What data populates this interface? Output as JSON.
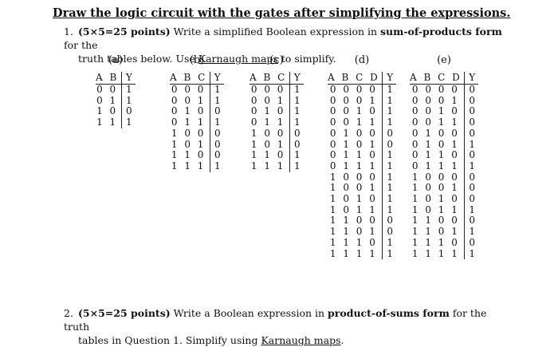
{
  "title": "Draw the logic circuit with the gates after simplifying the expressions.",
  "question1": {
    "number": "1.",
    "points": "(5×5=25 points)",
    "text_a": " Write a simplified Boolean expression in ",
    "emphasis": "sum-of-products form",
    "text_b": " for the",
    "line2_a": "truth tables below. Use ",
    "link": "Karnaugh maps",
    "line2_b": " to simplify."
  },
  "tables": [
    {
      "label": "(a)",
      "header_inputs": "A B",
      "header_output": "Y",
      "rows": [
        {
          "in": "0 0",
          "y": "1"
        },
        {
          "in": "0 1",
          "y": "1"
        },
        {
          "in": "1 0",
          "y": "0"
        },
        {
          "in": "1 1",
          "y": "1"
        }
      ]
    },
    {
      "label": "(b)",
      "header_inputs": "A B C",
      "header_output": "Y",
      "rows": [
        {
          "in": "0 0 0",
          "y": "1"
        },
        {
          "in": "0 0 1",
          "y": "1"
        },
        {
          "in": "0 1 0",
          "y": "0"
        },
        {
          "in": "0 1 1",
          "y": "1"
        },
        {
          "in": "1 0 0",
          "y": "0"
        },
        {
          "in": "1 0 1",
          "y": "0"
        },
        {
          "in": "1 1 0",
          "y": "0"
        },
        {
          "in": "1 1 1",
          "y": "1"
        }
      ]
    },
    {
      "label": "(c)",
      "header_inputs": "A B C",
      "header_output": "Y",
      "rows": [
        {
          "in": "0 0 0",
          "y": "1"
        },
        {
          "in": "0 0 1",
          "y": "1"
        },
        {
          "in": "0 1 0",
          "y": "1"
        },
        {
          "in": "0 1 1",
          "y": "1"
        },
        {
          "in": "1 0 0",
          "y": "0"
        },
        {
          "in": "1 0 1",
          "y": "0"
        },
        {
          "in": "1 1 0",
          "y": "1"
        },
        {
          "in": "1 1 1",
          "y": "1"
        }
      ]
    },
    {
      "label": "(d)",
      "header_inputs": "A B C D",
      "header_output": "Y",
      "rows": [
        {
          "in": "0 0 0 0",
          "y": "1"
        },
        {
          "in": "0 0 0 1",
          "y": "1"
        },
        {
          "in": "0 0 1 0",
          "y": "1"
        },
        {
          "in": "0 0 1 1",
          "y": "1"
        },
        {
          "in": "0 1 0 0",
          "y": "0"
        },
        {
          "in": "0 1 0 1",
          "y": "0"
        },
        {
          "in": "0 1 1 0",
          "y": "1"
        },
        {
          "in": "0 1 1 1",
          "y": "1"
        },
        {
          "in": "1 0 0 0",
          "y": "1"
        },
        {
          "in": "1 0 0 1",
          "y": "1"
        },
        {
          "in": "1 0 1 0",
          "y": "1"
        },
        {
          "in": "1 0 1 1",
          "y": "1"
        },
        {
          "in": "1 1 0 0",
          "y": "0"
        },
        {
          "in": "1 1 0 1",
          "y": "0"
        },
        {
          "in": "1 1 1 0",
          "y": "1"
        },
        {
          "in": "1 1 1 1",
          "y": "1"
        }
      ]
    },
    {
      "label": "(e)",
      "header_inputs": "A B C D",
      "header_output": "Y",
      "rows": [
        {
          "in": "0 0 0 0",
          "y": "0"
        },
        {
          "in": "0 0 0 1",
          "y": "0"
        },
        {
          "in": "0 0 1 0",
          "y": "0"
        },
        {
          "in": "0 0 1 1",
          "y": "0"
        },
        {
          "in": "0 1 0 0",
          "y": "0"
        },
        {
          "in": "0 1 0 1",
          "y": "1"
        },
        {
          "in": "0 1 1 0",
          "y": "0"
        },
        {
          "in": "0 1 1 1",
          "y": "1"
        },
        {
          "in": "1 0 0 0",
          "y": "0"
        },
        {
          "in": "1 0 0 1",
          "y": "0"
        },
        {
          "in": "1 0 1 0",
          "y": "0"
        },
        {
          "in": "1 0 1 1",
          "y": "1"
        },
        {
          "in": "1 1 0 0",
          "y": "0"
        },
        {
          "in": "1 1 0 1",
          "y": "1"
        },
        {
          "in": "1 1 1 0",
          "y": "0"
        },
        {
          "in": "1 1 1 1",
          "y": "1"
        }
      ]
    }
  ],
  "question2": {
    "number": "2.",
    "points": "(5×5=25 points)",
    "text_a": " Write a Boolean expression in ",
    "emphasis": "product-of-sums form",
    "text_b": " for the truth",
    "line2_a": "tables in Question 1. Simplify using ",
    "link": "Karnaugh maps",
    "line2_b": "."
  }
}
